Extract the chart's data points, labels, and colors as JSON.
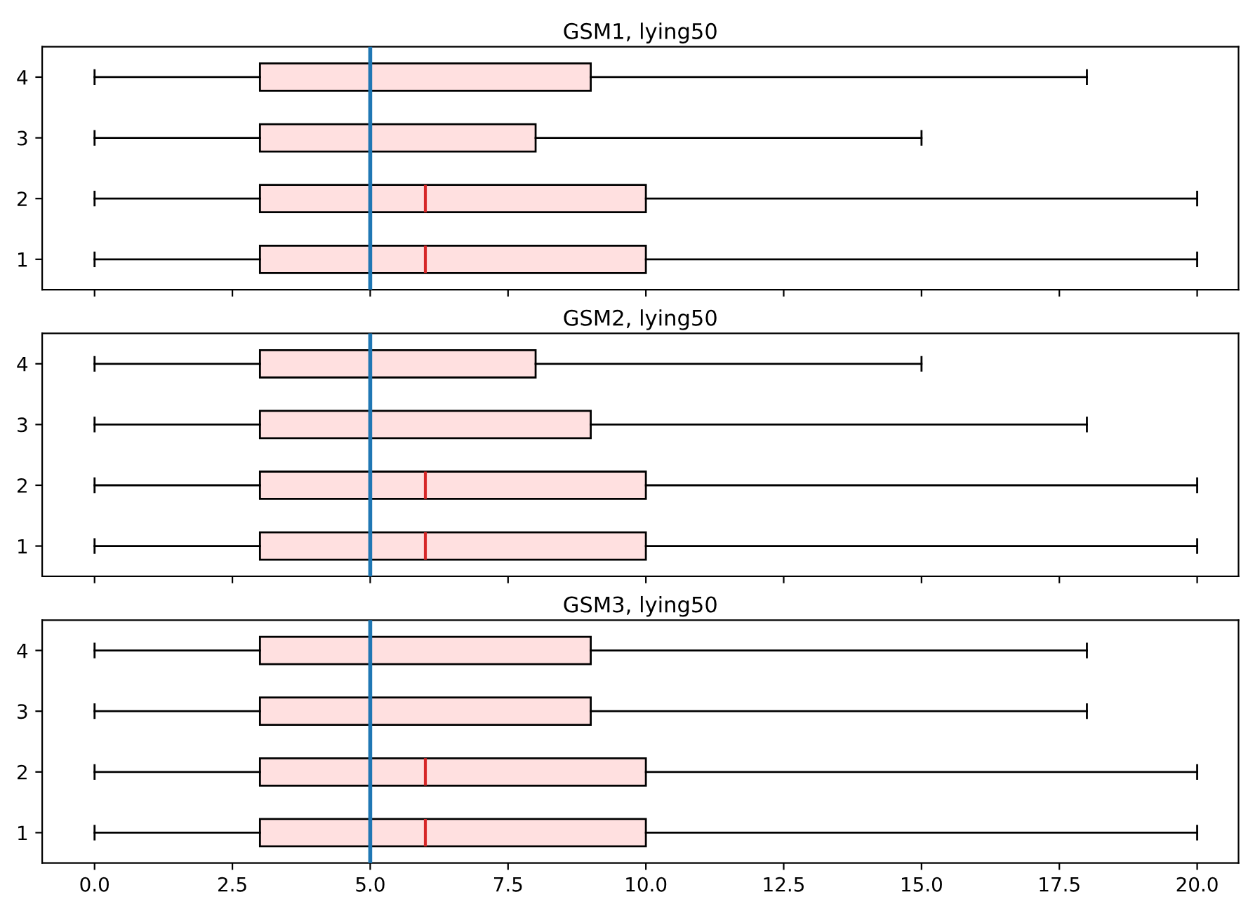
{
  "chart_data": [
    {
      "type": "box",
      "orientation": "horizontal",
      "title": "GSM1, lying50",
      "categories": [
        "4",
        "3",
        "2",
        "1"
      ],
      "xlim": [
        -0.95,
        20.75
      ],
      "xticks": [
        0.0,
        2.5,
        5.0,
        7.5,
        10.0,
        12.5,
        15.0,
        17.5,
        20.0
      ],
      "tick_labels": "y",
      "ref_lines": [
        {
          "axis": "x",
          "value": 5,
          "color": "#1f77b4"
        }
      ],
      "series": [
        {
          "color": "#ffe0e0",
          "boxes": [
            {
              "low": 0,
              "q1": 3,
              "median": 5,
              "q3": 9,
              "high": 18
            },
            {
              "low": 0,
              "q1": 3,
              "median": 5,
              "q3": 8,
              "high": 15
            },
            {
              "low": 0,
              "q1": 3,
              "median": 6,
              "q3": 10,
              "high": 20
            },
            {
              "low": 0,
              "q1": 3,
              "median": 6,
              "q3": 10,
              "high": 20
            }
          ]
        }
      ]
    },
    {
      "type": "box",
      "orientation": "horizontal",
      "title": "GSM2, lying50",
      "categories": [
        "4",
        "3",
        "2",
        "1"
      ],
      "xlim": [
        -0.95,
        20.75
      ],
      "xticks": [
        0.0,
        2.5,
        5.0,
        7.5,
        10.0,
        12.5,
        15.0,
        17.5,
        20.0
      ],
      "tick_labels": "y",
      "ref_lines": [
        {
          "axis": "x",
          "value": 5,
          "color": "#1f77b4"
        }
      ],
      "series": [
        {
          "color": "#ffe0e0",
          "boxes": [
            {
              "low": 0,
              "q1": 3,
              "median": 5,
              "q3": 8,
              "high": 15
            },
            {
              "low": 0,
              "q1": 3,
              "median": 5,
              "q3": 9,
              "high": 18
            },
            {
              "low": 0,
              "q1": 3,
              "median": 6,
              "q3": 10,
              "high": 20
            },
            {
              "low": 0,
              "q1": 3,
              "median": 6,
              "q3": 10,
              "high": 20
            }
          ]
        }
      ]
    },
    {
      "type": "box",
      "orientation": "horizontal",
      "title": "GSM3, lying50",
      "categories": [
        "4",
        "3",
        "2",
        "1"
      ],
      "xlim": [
        -0.95,
        20.75
      ],
      "xticks": [
        {
          "value": 0,
          "label": "0.0"
        },
        {
          "value": 2.5,
          "label": "2.5"
        },
        {
          "value": 5,
          "label": "5.0"
        },
        {
          "value": 7.5,
          "label": "7.5"
        },
        {
          "value": 10,
          "label": "10.0"
        },
        {
          "value": 12.5,
          "label": "12.5"
        },
        {
          "value": 15,
          "label": "15.0"
        },
        {
          "value": 17.5,
          "label": "17.5"
        },
        {
          "value": 20,
          "label": "20.0"
        }
      ],
      "ref_lines": [
        {
          "axis": "x",
          "value": 5,
          "color": "#1f77b4"
        }
      ],
      "series": [
        {
          "color": "#ffe0e0",
          "boxes": [
            {
              "low": 0,
              "q1": 3,
              "median": 5,
              "q3": 9,
              "high": 18
            },
            {
              "low": 0,
              "q1": 3,
              "median": 5,
              "q3": 9,
              "high": 18
            },
            {
              "low": 0,
              "q1": 3,
              "median": 6,
              "q3": 10,
              "high": 20
            },
            {
              "low": 0,
              "q1": 3,
              "median": 6,
              "q3": 10,
              "high": 20
            }
          ]
        }
      ]
    }
  ]
}
